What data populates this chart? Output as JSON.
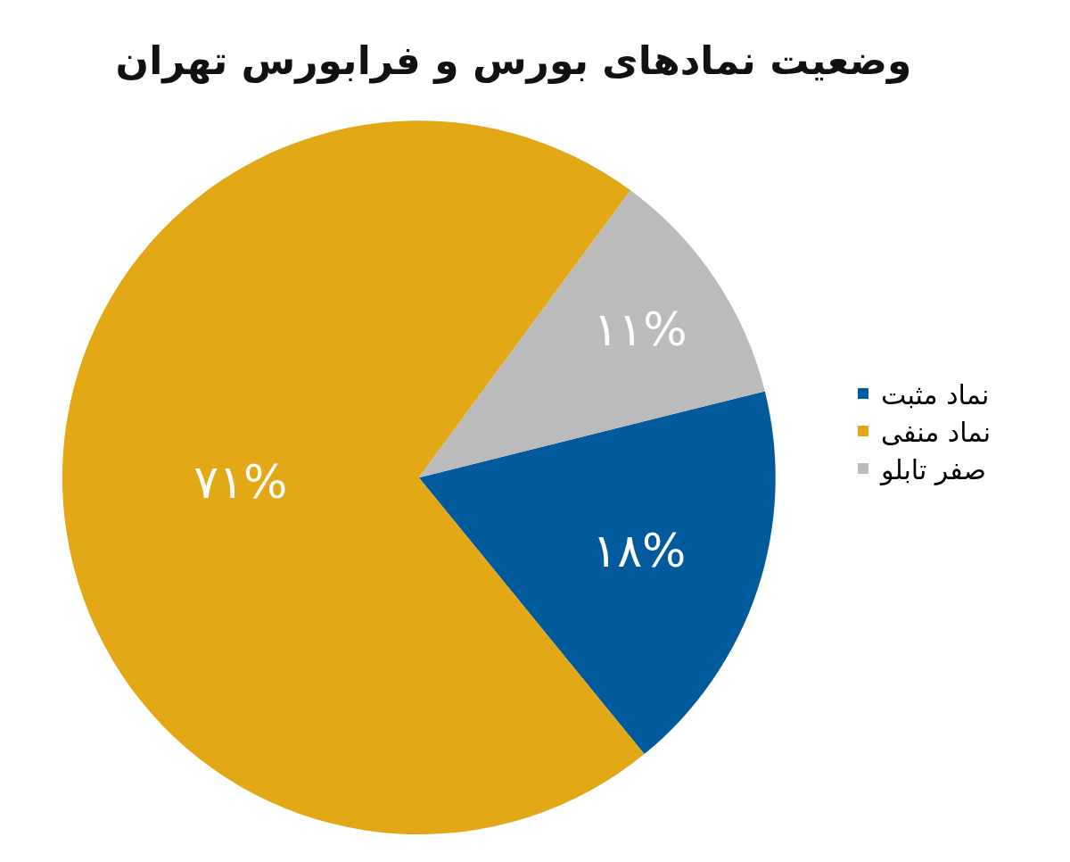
{
  "chart_data": {
    "type": "pie",
    "title": "وضعیت نمادهای بورس و فرابورس تهران",
    "categories": [
      "نماد مثبت",
      "نماد منفی",
      "صفر تابلو"
    ],
    "values": [
      18,
      71,
      11
    ],
    "value_labels": [
      "۱۸%",
      "۷۱%",
      "۱۱%"
    ],
    "colors": [
      "#005a9c",
      "#e3a815",
      "#bbbbbb"
    ],
    "legend": "right"
  }
}
